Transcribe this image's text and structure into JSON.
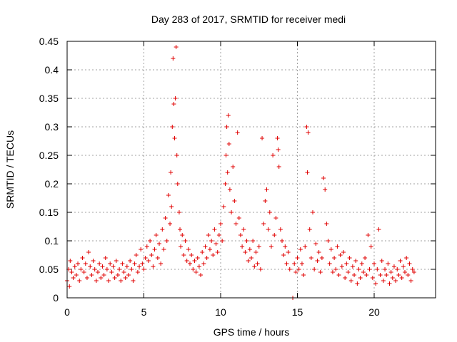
{
  "chart_data": {
    "type": "scatter",
    "title": "Day 283 of 2017, SRMTID for receiver medi",
    "xlabel": "GPS time / hours",
    "ylabel": "SRMTID / TECUs",
    "xlim": [
      0,
      24
    ],
    "ylim": [
      0,
      0.45
    ],
    "x_ticks": [
      0,
      5,
      10,
      15,
      20
    ],
    "x_tick_labels": [
      "0",
      "5",
      "10",
      "15",
      "20"
    ],
    "y_ticks": [
      0,
      0.05,
      0.1,
      0.15,
      0.2,
      0.25,
      0.3,
      0.35,
      0.4,
      0.45
    ],
    "y_tick_labels": [
      "0",
      "0.05",
      "0.1",
      "0.15",
      "0.2",
      "0.25",
      "0.3",
      "0.35",
      "0.4",
      "0.45"
    ],
    "grid": true,
    "marker": "plus",
    "color": "#e00000",
    "series": [
      {
        "name": "SRMTID",
        "points": [
          [
            0.0,
            0.03
          ],
          [
            0.1,
            0.05
          ],
          [
            0.15,
            0.02
          ],
          [
            0.2,
            0.065
          ],
          [
            0.3,
            0.045
          ],
          [
            0.4,
            0.035
          ],
          [
            0.5,
            0.055
          ],
          [
            0.6,
            0.04
          ],
          [
            0.7,
            0.06
          ],
          [
            0.8,
            0.03
          ],
          [
            0.9,
            0.05
          ],
          [
            1.0,
            0.07
          ],
          [
            1.1,
            0.045
          ],
          [
            1.2,
            0.06
          ],
          [
            1.3,
            0.035
          ],
          [
            1.4,
            0.08
          ],
          [
            1.5,
            0.055
          ],
          [
            1.6,
            0.04
          ],
          [
            1.7,
            0.065
          ],
          [
            1.8,
            0.05
          ],
          [
            1.9,
            0.03
          ],
          [
            2.0,
            0.045
          ],
          [
            2.1,
            0.06
          ],
          [
            2.2,
            0.035
          ],
          [
            2.3,
            0.055
          ],
          [
            2.4,
            0.04
          ],
          [
            2.5,
            0.07
          ],
          [
            2.6,
            0.05
          ],
          [
            2.7,
            0.03
          ],
          [
            2.8,
            0.06
          ],
          [
            2.9,
            0.045
          ],
          [
            3.0,
            0.055
          ],
          [
            3.1,
            0.035
          ],
          [
            3.2,
            0.065
          ],
          [
            3.3,
            0.04
          ],
          [
            3.4,
            0.05
          ],
          [
            3.5,
            0.03
          ],
          [
            3.6,
            0.06
          ],
          [
            3.7,
            0.045
          ],
          [
            3.8,
            0.035
          ],
          [
            3.9,
            0.055
          ],
          [
            4.0,
            0.04
          ],
          [
            4.1,
            0.065
          ],
          [
            4.2,
            0.05
          ],
          [
            4.3,
            0.03
          ],
          [
            4.4,
            0.06
          ],
          [
            4.5,
            0.075
          ],
          [
            4.6,
            0.045
          ],
          [
            4.7,
            0.055
          ],
          [
            4.8,
            0.085
          ],
          [
            4.9,
            0.06
          ],
          [
            5.0,
            0.05
          ],
          [
            5.1,
            0.07
          ],
          [
            5.2,
            0.09
          ],
          [
            5.3,
            0.065
          ],
          [
            5.4,
            0.1
          ],
          [
            5.5,
            0.075
          ],
          [
            5.6,
            0.055
          ],
          [
            5.7,
            0.085
          ],
          [
            5.8,
            0.11
          ],
          [
            5.9,
            0.07
          ],
          [
            6.0,
            0.095
          ],
          [
            6.1,
            0.06
          ],
          [
            6.2,
            0.12
          ],
          [
            6.3,
            0.085
          ],
          [
            6.4,
            0.14
          ],
          [
            6.5,
            0.1
          ],
          [
            6.6,
            0.18
          ],
          [
            6.7,
            0.13
          ],
          [
            6.75,
            0.22
          ],
          [
            6.8,
            0.16
          ],
          [
            6.85,
            0.3
          ],
          [
            6.9,
            0.42
          ],
          [
            6.95,
            0.34
          ],
          [
            7.0,
            0.28
          ],
          [
            7.05,
            0.35
          ],
          [
            7.1,
            0.44
          ],
          [
            7.15,
            0.25
          ],
          [
            7.2,
            0.2
          ],
          [
            7.3,
            0.15
          ],
          [
            7.35,
            0.12
          ],
          [
            7.4,
            0.09
          ],
          [
            7.5,
            0.11
          ],
          [
            7.6,
            0.075
          ],
          [
            7.7,
            0.1
          ],
          [
            7.8,
            0.065
          ],
          [
            7.9,
            0.085
          ],
          [
            8.0,
            0.06
          ],
          [
            8.1,
            0.075
          ],
          [
            8.2,
            0.05
          ],
          [
            8.3,
            0.065
          ],
          [
            8.4,
            0.045
          ],
          [
            8.5,
            0.07
          ],
          [
            8.6,
            0.055
          ],
          [
            8.7,
            0.04
          ],
          [
            8.8,
            0.08
          ],
          [
            8.9,
            0.06
          ],
          [
            9.0,
            0.09
          ],
          [
            9.1,
            0.07
          ],
          [
            9.2,
            0.11
          ],
          [
            9.3,
            0.085
          ],
          [
            9.4,
            0.1
          ],
          [
            9.5,
            0.075
          ],
          [
            9.6,
            0.12
          ],
          [
            9.7,
            0.095
          ],
          [
            9.8,
            0.08
          ],
          [
            9.9,
            0.11
          ],
          [
            10.0,
            0.13
          ],
          [
            10.1,
            0.1
          ],
          [
            10.2,
            0.16
          ],
          [
            10.3,
            0.2
          ],
          [
            10.35,
            0.25
          ],
          [
            10.4,
            0.3
          ],
          [
            10.45,
            0.22
          ],
          [
            10.5,
            0.32
          ],
          [
            10.55,
            0.27
          ],
          [
            10.6,
            0.19
          ],
          [
            10.7,
            0.15
          ],
          [
            10.8,
            0.23
          ],
          [
            10.9,
            0.17
          ],
          [
            11.0,
            0.13
          ],
          [
            11.1,
            0.29
          ],
          [
            11.2,
            0.14
          ],
          [
            11.3,
            0.11
          ],
          [
            11.4,
            0.09
          ],
          [
            11.5,
            0.12
          ],
          [
            11.6,
            0.08
          ],
          [
            11.7,
            0.1
          ],
          [
            11.8,
            0.065
          ],
          [
            11.9,
            0.085
          ],
          [
            12.0,
            0.07
          ],
          [
            12.1,
            0.1
          ],
          [
            12.2,
            0.055
          ],
          [
            12.3,
            0.08
          ],
          [
            12.4,
            0.06
          ],
          [
            12.5,
            0.09
          ],
          [
            12.6,
            0.05
          ],
          [
            12.7,
            0.28
          ],
          [
            12.8,
            0.13
          ],
          [
            12.9,
            0.17
          ],
          [
            13.0,
            0.19
          ],
          [
            13.1,
            0.12
          ],
          [
            13.2,
            0.15
          ],
          [
            13.3,
            0.09
          ],
          [
            13.4,
            0.25
          ],
          [
            13.5,
            0.11
          ],
          [
            13.6,
            0.14
          ],
          [
            13.7,
            0.28
          ],
          [
            13.75,
            0.26
          ],
          [
            13.8,
            0.23
          ],
          [
            13.9,
            0.12
          ],
          [
            14.0,
            0.1
          ],
          [
            14.1,
            0.075
          ],
          [
            14.2,
            0.09
          ],
          [
            14.3,
            0.06
          ],
          [
            14.4,
            0.08
          ],
          [
            14.5,
            0.05
          ],
          [
            14.7,
            0.0
          ],
          [
            14.8,
            0.06
          ],
          [
            14.9,
            0.045
          ],
          [
            15.0,
            0.07
          ],
          [
            15.1,
            0.05
          ],
          [
            15.2,
            0.085
          ],
          [
            15.3,
            0.06
          ],
          [
            15.4,
            0.04
          ],
          [
            15.5,
            0.09
          ],
          [
            15.6,
            0.3
          ],
          [
            15.65,
            0.22
          ],
          [
            15.7,
            0.29
          ],
          [
            15.8,
            0.12
          ],
          [
            15.9,
            0.07
          ],
          [
            16.0,
            0.15
          ],
          [
            16.1,
            0.05
          ],
          [
            16.2,
            0.095
          ],
          [
            16.3,
            0.065
          ],
          [
            16.4,
            0.08
          ],
          [
            16.5,
            0.045
          ],
          [
            16.6,
            0.07
          ],
          [
            16.7,
            0.21
          ],
          [
            16.8,
            0.19
          ],
          [
            16.9,
            0.13
          ],
          [
            17.0,
            0.1
          ],
          [
            17.1,
            0.06
          ],
          [
            17.2,
            0.085
          ],
          [
            17.3,
            0.045
          ],
          [
            17.4,
            0.07
          ],
          [
            17.5,
            0.05
          ],
          [
            17.6,
            0.09
          ],
          [
            17.7,
            0.04
          ],
          [
            17.8,
            0.075
          ],
          [
            17.9,
            0.055
          ],
          [
            18.0,
            0.08
          ],
          [
            18.1,
            0.035
          ],
          [
            18.2,
            0.06
          ],
          [
            18.3,
            0.045
          ],
          [
            18.4,
            0.07
          ],
          [
            18.5,
            0.03
          ],
          [
            18.6,
            0.055
          ],
          [
            18.7,
            0.04
          ],
          [
            18.8,
            0.065
          ],
          [
            18.9,
            0.025
          ],
          [
            19.0,
            0.05
          ],
          [
            19.1,
            0.035
          ],
          [
            19.2,
            0.06
          ],
          [
            19.3,
            0.045
          ],
          [
            19.4,
            0.07
          ],
          [
            19.5,
            0.04
          ],
          [
            19.6,
            0.11
          ],
          [
            19.7,
            0.05
          ],
          [
            19.8,
            0.09
          ],
          [
            19.9,
            0.035
          ],
          [
            20.0,
            0.06
          ],
          [
            20.1,
            0.025
          ],
          [
            20.2,
            0.05
          ],
          [
            20.3,
            0.12
          ],
          [
            20.4,
            0.04
          ],
          [
            20.5,
            0.065
          ],
          [
            20.6,
            0.03
          ],
          [
            20.7,
            0.05
          ],
          [
            20.8,
            0.04
          ],
          [
            20.9,
            0.06
          ],
          [
            21.0,
            0.025
          ],
          [
            21.1,
            0.045
          ],
          [
            21.2,
            0.035
          ],
          [
            21.3,
            0.055
          ],
          [
            21.4,
            0.03
          ],
          [
            21.5,
            0.05
          ],
          [
            21.6,
            0.04
          ],
          [
            21.7,
            0.065
          ],
          [
            21.8,
            0.035
          ],
          [
            21.9,
            0.055
          ],
          [
            22.0,
            0.045
          ],
          [
            22.1,
            0.07
          ],
          [
            22.2,
            0.04
          ],
          [
            22.3,
            0.06
          ],
          [
            22.4,
            0.03
          ],
          [
            22.5,
            0.05
          ],
          [
            22.6,
            0.045
          ]
        ]
      }
    ]
  }
}
